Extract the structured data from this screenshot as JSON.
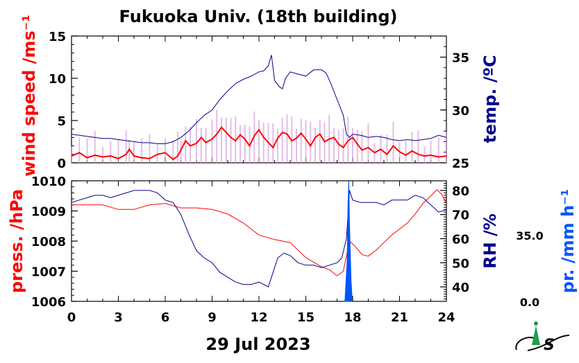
{
  "title": "Fukuoka Univ. (18th building)",
  "date_label": "29 Jul 2023",
  "colors": {
    "wind": "#ff0000",
    "wind_band": "#d9a0dc",
    "temp": "#00008b",
    "press": "#ff0000",
    "rh": "#00008b",
    "precip": "#0055ff"
  },
  "logo": "institute-logo",
  "chart_data": [
    {
      "type": "line",
      "panel": "top",
      "xlabel": "",
      "x_ticks": [
        "0",
        "3",
        "6",
        "9",
        "12",
        "15",
        "18",
        "21",
        "24"
      ],
      "xlim": [
        0,
        24
      ],
      "left_axis": {
        "label": "wind speed /ms⁻¹",
        "ylim": [
          0,
          15
        ],
        "ticks": [
          "0",
          "5",
          "10",
          "15"
        ]
      },
      "right_axis": {
        "label": "temp. /ºC",
        "ylim": [
          25,
          37
        ],
        "ticks": [
          "25",
          "30",
          "35"
        ]
      },
      "series": [
        {
          "axis": "left",
          "kind": "wind_mean",
          "points": [
            [
              0,
              0.8
            ],
            [
              0.5,
              1.2
            ],
            [
              1,
              0.6
            ],
            [
              1.5,
              0.9
            ],
            [
              2,
              0.7
            ],
            [
              2.5,
              0.8
            ],
            [
              3,
              0.5
            ],
            [
              3.5,
              1.0
            ],
            [
              3.7,
              1.6
            ],
            [
              4,
              0.8
            ],
            [
              4.5,
              0.6
            ],
            [
              5,
              0.5
            ],
            [
              5.5,
              1.0
            ],
            [
              6,
              1.2
            ],
            [
              6.5,
              0.4
            ],
            [
              6.8,
              0.8
            ],
            [
              7,
              1.5
            ],
            [
              7.3,
              2.6
            ],
            [
              7.6,
              2.0
            ],
            [
              8,
              2.3
            ],
            [
              8.3,
              3.0
            ],
            [
              8.6,
              2.4
            ],
            [
              9,
              2.8
            ],
            [
              9.3,
              3.4
            ],
            [
              9.6,
              4.2
            ],
            [
              9.9,
              3.6
            ],
            [
              10.2,
              3.0
            ],
            [
              10.5,
              2.6
            ],
            [
              10.8,
              3.3
            ],
            [
              11.1,
              2.8
            ],
            [
              11.4,
              2.0
            ],
            [
              11.7,
              3.2
            ],
            [
              12,
              3.9
            ],
            [
              12.3,
              3.0
            ],
            [
              12.6,
              2.4
            ],
            [
              12.9,
              1.8
            ],
            [
              13.2,
              2.9
            ],
            [
              13.5,
              3.6
            ],
            [
              13.8,
              3.4
            ],
            [
              14.1,
              2.6
            ],
            [
              14.4,
              2.9
            ],
            [
              14.7,
              3.5
            ],
            [
              15,
              2.8
            ],
            [
              15.3,
              2.0
            ],
            [
              15.6,
              3.0
            ],
            [
              15.9,
              3.4
            ],
            [
              16.2,
              2.5
            ],
            [
              16.5,
              2.8
            ],
            [
              16.8,
              3.0
            ],
            [
              17.1,
              2.2
            ],
            [
              17.4,
              1.8
            ],
            [
              17.7,
              2.6
            ],
            [
              18,
              3.0
            ],
            [
              18.3,
              2.2
            ],
            [
              18.6,
              1.5
            ],
            [
              19,
              1.8
            ],
            [
              19.4,
              1.2
            ],
            [
              19.8,
              1.6
            ],
            [
              20.2,
              1.0
            ],
            [
              20.6,
              2.0
            ],
            [
              21,
              1.3
            ],
            [
              21.4,
              0.9
            ],
            [
              21.8,
              1.4
            ],
            [
              22.2,
              1.0
            ],
            [
              22.6,
              0.8
            ],
            [
              23,
              0.9
            ],
            [
              23.5,
              0.7
            ],
            [
              24,
              0.8
            ]
          ]
        },
        {
          "axis": "right",
          "kind": "temperature",
          "points": [
            [
              0,
              27.7
            ],
            [
              0.5,
              27.6
            ],
            [
              1,
              27.5
            ],
            [
              1.5,
              27.4
            ],
            [
              2,
              27.3
            ],
            [
              2.5,
              27.3
            ],
            [
              3,
              27.2
            ],
            [
              3.5,
              27.1
            ],
            [
              4,
              27.0
            ],
            [
              4.5,
              26.9
            ],
            [
              5,
              26.9
            ],
            [
              5.5,
              26.8
            ],
            [
              6,
              26.8
            ],
            [
              6.5,
              27.0
            ],
            [
              7,
              27.4
            ],
            [
              7.5,
              28.0
            ],
            [
              8,
              28.8
            ],
            [
              8.5,
              29.5
            ],
            [
              9,
              30.0
            ],
            [
              9.5,
              31.0
            ],
            [
              10,
              31.8
            ],
            [
              10.5,
              32.5
            ],
            [
              11,
              32.9
            ],
            [
              11.5,
              33.2
            ],
            [
              12,
              33.6
            ],
            [
              12.3,
              33.7
            ],
            [
              12.6,
              34.2
            ],
            [
              12.8,
              35.2
            ],
            [
              13,
              32.8
            ],
            [
              13.3,
              32.2
            ],
            [
              13.5,
              32.0
            ],
            [
              13.7,
              33.0
            ],
            [
              14,
              33.6
            ],
            [
              14.5,
              33.4
            ],
            [
              15,
              33.2
            ],
            [
              15.5,
              33.8
            ],
            [
              16,
              33.8
            ],
            [
              16.3,
              33.5
            ],
            [
              16.6,
              32.5
            ],
            [
              17,
              31.0
            ],
            [
              17.4,
              29.5
            ],
            [
              17.6,
              27.7
            ],
            [
              17.8,
              27.4
            ],
            [
              18,
              27.7
            ],
            [
              18.5,
              27.6
            ],
            [
              19,
              27.4
            ],
            [
              19.5,
              27.5
            ],
            [
              20,
              27.4
            ],
            [
              20.5,
              27.2
            ],
            [
              21,
              27.1
            ],
            [
              21.5,
              27.2
            ],
            [
              22,
              27.1
            ],
            [
              22.5,
              27.2
            ],
            [
              23,
              27.3
            ],
            [
              23.5,
              27.6
            ],
            [
              24,
              27.4
            ]
          ]
        }
      ]
    },
    {
      "type": "line",
      "panel": "bottom",
      "xlabel": "29 Jul 2023",
      "x_ticks": [
        "0",
        "3",
        "6",
        "9",
        "12",
        "15",
        "18",
        "21",
        "24"
      ],
      "xlim": [
        0,
        24
      ],
      "left_axis": {
        "label": "press. /hPa",
        "ylim": [
          1006,
          1010
        ],
        "ticks": [
          "1006",
          "1007",
          "1008",
          "1009",
          "1010"
        ]
      },
      "right_axis": {
        "label": "RH /%",
        "ylim": [
          34,
          84
        ],
        "ticks": [
          "40",
          "50",
          "60",
          "70",
          "80"
        ]
      },
      "precip_axis": {
        "label": "pr. /mm h⁻¹",
        "ylim": [
          0,
          35
        ],
        "ticks": [
          "0.0",
          "35.0"
        ]
      },
      "series": [
        {
          "axis": "left",
          "kind": "pressure",
          "points": [
            [
              0,
              1009.2
            ],
            [
              1,
              1009.2
            ],
            [
              2,
              1009.2
            ],
            [
              3,
              1009.05
            ],
            [
              4,
              1009.05
            ],
            [
              5,
              1009.2
            ],
            [
              6,
              1009.25
            ],
            [
              7,
              1009.1
            ],
            [
              8,
              1009.1
            ],
            [
              9,
              1009.05
            ],
            [
              10,
              1008.9
            ],
            [
              11,
              1008.6
            ],
            [
              12,
              1008.2
            ],
            [
              13,
              1008.05
            ],
            [
              14,
              1007.95
            ],
            [
              15,
              1007.45
            ],
            [
              16,
              1007.15
            ],
            [
              16.5,
              1007.05
            ],
            [
              17,
              1006.85
            ],
            [
              17.4,
              1007.0
            ],
            [
              17.8,
              1008.0
            ],
            [
              18.2,
              1007.8
            ],
            [
              18.6,
              1007.55
            ],
            [
              19,
              1007.5
            ],
            [
              19.5,
              1007.7
            ],
            [
              20,
              1007.95
            ],
            [
              20.5,
              1008.2
            ],
            [
              21,
              1008.4
            ],
            [
              21.5,
              1008.6
            ],
            [
              22,
              1008.9
            ],
            [
              22.5,
              1009.25
            ],
            [
              23,
              1009.5
            ],
            [
              23.4,
              1009.7
            ],
            [
              23.7,
              1009.55
            ],
            [
              24,
              1009.25
            ]
          ]
        },
        {
          "axis": "right",
          "kind": "relative_humidity",
          "points": [
            [
              0,
              75
            ],
            [
              0.5,
              76
            ],
            [
              1,
              77
            ],
            [
              1.5,
              78
            ],
            [
              2,
              78
            ],
            [
              2.5,
              77
            ],
            [
              3,
              78
            ],
            [
              3.5,
              79
            ],
            [
              4,
              80
            ],
            [
              4.5,
              80
            ],
            [
              5,
              80
            ],
            [
              5.5,
              79
            ],
            [
              6,
              76
            ],
            [
              6.5,
              75
            ],
            [
              7,
              70
            ],
            [
              7.5,
              62
            ],
            [
              8,
              55
            ],
            [
              8.5,
              52
            ],
            [
              9,
              50
            ],
            [
              9.5,
              46
            ],
            [
              10,
              44
            ],
            [
              10.5,
              42
            ],
            [
              11,
              41
            ],
            [
              11.5,
              41
            ],
            [
              12,
              42
            ],
            [
              12.3,
              41
            ],
            [
              12.6,
              40
            ],
            [
              12.8,
              44
            ],
            [
              13.2,
              52
            ],
            [
              13.6,
              54
            ],
            [
              14,
              53
            ],
            [
              14.5,
              50
            ],
            [
              15,
              49
            ],
            [
              15.5,
              49
            ],
            [
              16,
              48
            ],
            [
              16.5,
              49
            ],
            [
              17,
              50
            ],
            [
              17.3,
              52
            ],
            [
              17.6,
              60
            ],
            [
              17.8,
              80
            ],
            [
              18,
              76
            ],
            [
              18.5,
              75
            ],
            [
              19,
              75
            ],
            [
              19.5,
              75
            ],
            [
              20,
              74
            ],
            [
              20.5,
              76
            ],
            [
              21,
              76
            ],
            [
              21.5,
              76
            ],
            [
              22,
              78
            ],
            [
              22.5,
              77
            ],
            [
              23,
              74
            ],
            [
              23.5,
              71
            ],
            [
              24,
              72
            ]
          ]
        },
        {
          "axis": "precip",
          "kind": "precipitation",
          "points": [
            [
              17.5,
              0
            ],
            [
              17.6,
              8
            ],
            [
              17.65,
              12
            ],
            [
              17.7,
              28
            ],
            [
              17.75,
              35
            ],
            [
              17.8,
              22
            ],
            [
              17.85,
              14
            ],
            [
              17.9,
              6
            ],
            [
              17.95,
              2
            ]
          ]
        }
      ]
    }
  ]
}
